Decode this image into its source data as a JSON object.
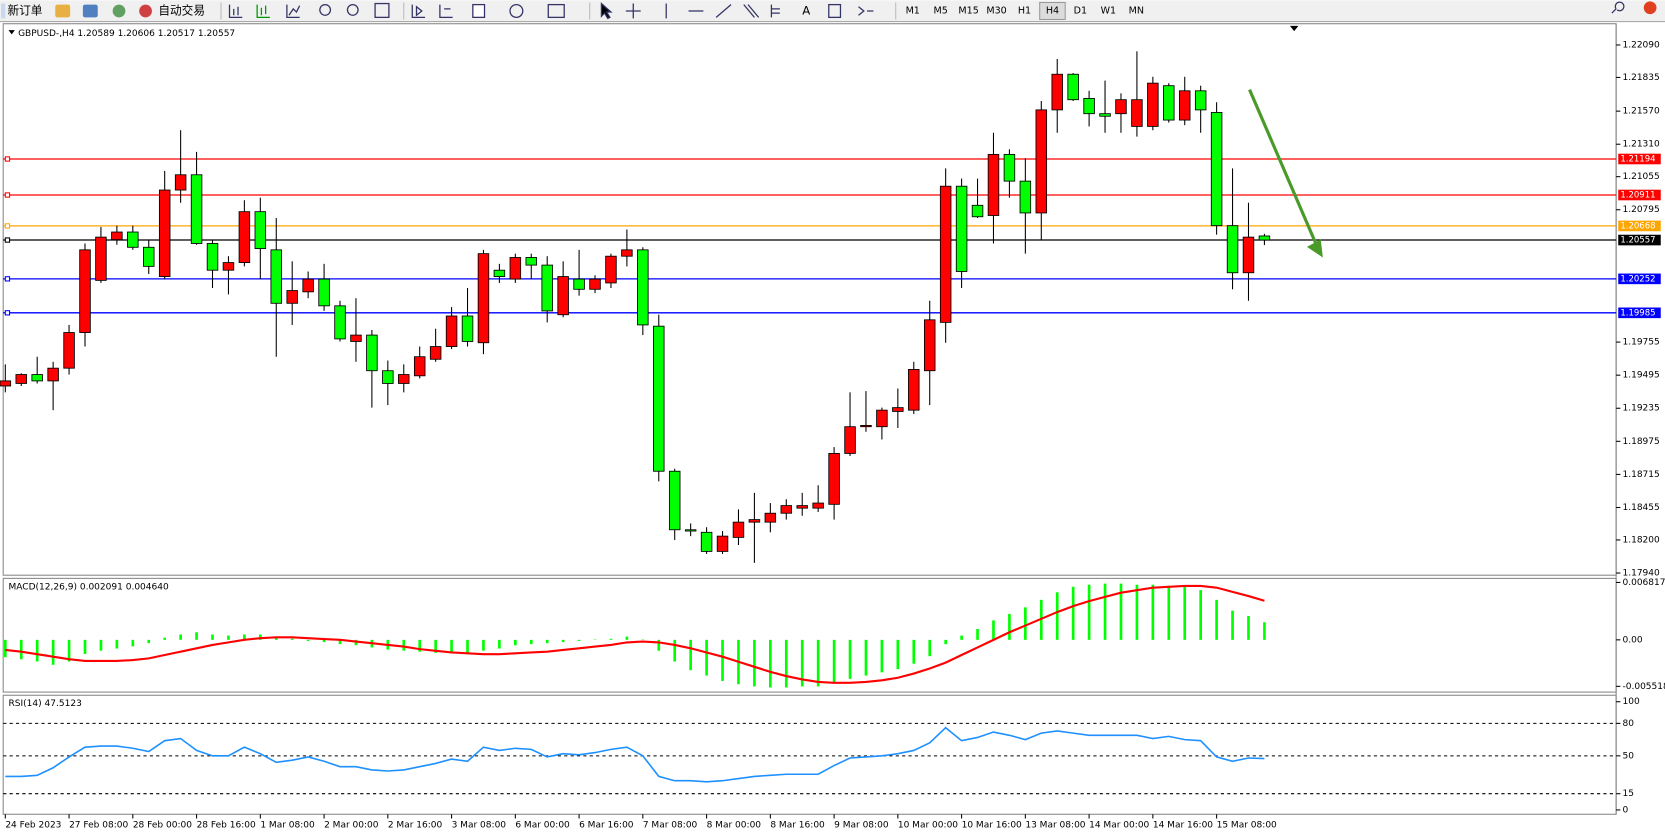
{
  "toolbar": {
    "new_order": "新订单",
    "auto_trading": "自动交易",
    "timeframes": [
      "M1",
      "M5",
      "M15",
      "M30",
      "H1",
      "H4",
      "D1",
      "W1",
      "MN"
    ],
    "active_timeframe": 5
  },
  "chart_data": [
    {
      "type": "candlestick",
      "title": "GBPUSD-,H4  1.20589 1.20606 1.20517 1.20557",
      "categories": [
        "24 Feb 2023",
        null,
        null,
        null,
        "27 Feb 08:00",
        null,
        null,
        null,
        "28 Feb 00:00",
        null,
        null,
        null,
        "28 Feb 16:00",
        null,
        null,
        null,
        "1 Mar 08:00",
        null,
        null,
        null,
        "2 Mar 00:00",
        null,
        null,
        null,
        "2 Mar 16:00",
        null,
        null,
        null,
        "3 Mar 08:00",
        null,
        null,
        null,
        "6 Mar 00:00",
        null,
        null,
        null,
        "6 Mar 16:00",
        null,
        null,
        null,
        "7 Mar 08:00",
        null,
        null,
        null,
        "8 Mar 00:00",
        null,
        null,
        null,
        "8 Mar 16:00",
        null,
        null,
        null,
        "9 Mar 08:00",
        null,
        null,
        null,
        "10 Mar 00:00",
        null,
        null,
        null,
        "10 Mar 16:00",
        null,
        null,
        null,
        "13 Mar 08:00",
        null,
        null,
        null,
        "14 Mar 00:00",
        null,
        null,
        null,
        "14 Mar 16:00",
        null,
        null,
        null,
        "15 Mar 08:00",
        null,
        null,
        null
      ],
      "open": [
        1.1941,
        1.1943,
        1.195,
        1.1945,
        1.1955,
        1.1983,
        1.2024,
        1.2056,
        1.2062,
        1.205,
        1.2027,
        1.2095,
        1.2107,
        1.2053,
        1.2032,
        1.2038,
        1.2078,
        1.2048,
        1.2006,
        1.2015,
        1.2025,
        1.2004,
        1.1976,
        1.1981,
        1.1953,
        1.1943,
        1.1949,
        1.1962,
        1.1972,
        1.1996,
        1.1975,
        1.2032,
        1.2025,
        1.2042,
        1.2036,
        1.1997,
        1.2025,
        1.2017,
        1.2022,
        1.2043,
        1.2048,
        1.1988,
        1.1874,
        1.1828,
        1.1826,
        1.1811,
        1.1822,
        1.1834,
        1.1834,
        1.1841,
        1.1845,
        1.1845,
        1.1848,
        1.1888,
        1.1909,
        1.1909,
        1.1921,
        1.1922,
        1.1953,
        1.1991,
        1.2098,
        1.2083,
        1.2075,
        1.2123,
        1.2102,
        1.2077,
        1.2158,
        1.2186,
        1.2167,
        1.2155,
        1.2155,
        1.2145,
        1.2145,
        1.2177,
        1.215,
        1.2173,
        1.2156,
        1.2067,
        1.203,
        1.20589
      ],
      "high": [
        1.1958,
        1.1951,
        1.1964,
        1.196,
        1.1989,
        1.2053,
        1.2066,
        1.2067,
        1.2067,
        1.2056,
        1.211,
        1.2142,
        1.2125,
        1.2056,
        1.2043,
        1.2087,
        1.2089,
        1.2073,
        1.2039,
        1.2031,
        1.2037,
        1.2008,
        1.201,
        1.1985,
        1.1961,
        1.1958,
        1.1972,
        1.1986,
        1.2003,
        1.2018,
        1.2048,
        1.2037,
        1.2045,
        1.2045,
        1.2043,
        1.2039,
        1.2048,
        1.2028,
        1.2045,
        1.2064,
        1.205,
        1.1997,
        1.1876,
        1.1833,
        1.183,
        1.1827,
        1.1844,
        1.1857,
        1.1849,
        1.1852,
        1.1857,
        1.1863,
        1.1893,
        1.1936,
        1.1937,
        1.1924,
        1.1939,
        1.196,
        1.2008,
        1.2112,
        1.2104,
        1.2104,
        1.214,
        1.2127,
        1.212,
        1.2165,
        1.2198,
        1.2187,
        1.2173,
        1.2181,
        1.2171,
        1.2204,
        1.2184,
        1.2179,
        1.2184,
        1.2177,
        1.2164,
        1.2112,
        1.2085,
        1.20606
      ],
      "low": [
        1.1936,
        1.1941,
        1.1943,
        1.1922,
        1.195,
        1.1972,
        1.2022,
        1.2052,
        1.2048,
        1.2029,
        1.2025,
        1.2085,
        1.2052,
        1.2018,
        1.2013,
        1.2035,
        1.2025,
        1.1964,
        1.1989,
        1.201,
        1.2,
        1.1976,
        1.196,
        1.1924,
        1.1926,
        1.1936,
        1.1947,
        1.196,
        1.197,
        1.1972,
        1.1966,
        1.2022,
        1.2022,
        1.2025,
        1.1991,
        1.1995,
        1.2012,
        1.2014,
        1.2018,
        1.2035,
        1.1981,
        1.1866,
        1.182,
        1.1823,
        1.1809,
        1.1809,
        1.1816,
        1.1802,
        1.1826,
        1.1836,
        1.1839,
        1.1842,
        1.1836,
        1.1886,
        1.1905,
        1.1899,
        1.1908,
        1.1919,
        1.1926,
        1.1975,
        1.2018,
        1.2073,
        1.2053,
        1.2089,
        1.2045,
        1.2056,
        1.214,
        1.2165,
        1.2145,
        1.214,
        1.214,
        1.2137,
        1.2142,
        1.2148,
        1.2146,
        1.214,
        1.206,
        1.2017,
        1.2008,
        1.20517
      ],
      "close": [
        1.1945,
        1.195,
        1.1945,
        1.1955,
        1.1983,
        1.2048,
        1.2058,
        1.2062,
        1.205,
        1.2035,
        1.2095,
        1.2107,
        1.2053,
        1.2032,
        1.2038,
        1.2078,
        1.2049,
        1.2006,
        1.2016,
        1.2025,
        1.2004,
        1.1978,
        1.1981,
        1.1953,
        1.1943,
        1.195,
        1.1964,
        1.1972,
        1.1996,
        1.1976,
        1.2045,
        1.2027,
        1.2042,
        1.2036,
        1.2,
        1.2027,
        1.2017,
        1.2025,
        1.2043,
        1.2048,
        1.1989,
        1.1874,
        1.1828,
        1.1827,
        1.1811,
        1.1823,
        1.1834,
        1.1836,
        1.1841,
        1.1847,
        1.1847,
        1.1849,
        1.1888,
        1.1909,
        1.191,
        1.1922,
        1.1924,
        1.1954,
        1.1993,
        1.2098,
        1.2031,
        1.2074,
        1.2123,
        1.2102,
        1.2077,
        1.2158,
        1.2186,
        1.2166,
        1.2155,
        1.2153,
        1.2166,
        1.2166,
        1.2179,
        1.215,
        1.2173,
        1.2158,
        1.2067,
        1.203,
        1.2058,
        1.20557
      ],
      "up_color": "#ff0000",
      "down_color": "#00ff00",
      "ylim": [
        1.17923,
        1.22257
      ],
      "yticks": [
        {
          "value": 1.2209,
          "label": "1.22090"
        },
        {
          "value": 1.21835,
          "label": "1.21835"
        },
        {
          "value": 1.2157,
          "label": "1.21570"
        },
        {
          "value": 1.2131,
          "label": "1.21310"
        },
        {
          "value": 1.21055,
          "label": "1.21055"
        },
        {
          "value": 1.20795,
          "label": "1.20795"
        },
        {
          "value": 1.19755,
          "label": "1.19755"
        },
        {
          "value": 1.19495,
          "label": "1.19495"
        },
        {
          "value": 1.19235,
          "label": "1.19235"
        },
        {
          "value": 1.18975,
          "label": "1.18975"
        },
        {
          "value": 1.18715,
          "label": "1.18715"
        },
        {
          "value": 1.18455,
          "label": "1.18455"
        },
        {
          "value": 1.182,
          "label": "1.18200"
        },
        {
          "value": 1.1794,
          "label": "1.17940"
        }
      ],
      "levels": [
        {
          "value": 1.21194,
          "color": "#ff0000"
        },
        {
          "value": 1.20911,
          "color": "#ff0000"
        },
        {
          "value": 1.20668,
          "color": "#ffa500"
        },
        {
          "value": 1.20557,
          "color": "#000000"
        },
        {
          "value": 1.20252,
          "color": "#0000ff"
        },
        {
          "value": 1.19985,
          "color": "#0000ff"
        }
      ]
    },
    {
      "type": "macd",
      "title": "MACD(12,26,9) 0.002091 0.004640",
      "histogram": {
        "color": "#00ff00",
        "values": [
          -0.00206,
          -0.00231,
          -0.00257,
          -0.00296,
          -0.00257,
          -0.00167,
          -0.00129,
          -0.00103,
          -0.00077,
          -0.00039,
          0.00026,
          0.00064,
          0.0009,
          0.00064,
          0.00051,
          0.00064,
          0.00064,
          0.00026,
          0.00013,
          -0.00013,
          -0.00026,
          -0.00051,
          -0.00064,
          -0.0009,
          -0.00116,
          -0.00129,
          -0.00141,
          -0.00154,
          -0.00154,
          -0.00154,
          -0.00129,
          -0.00103,
          -0.00064,
          -0.00051,
          -0.00039,
          -0.00026,
          -0.00013,
          5e-05,
          0.00013,
          0.00039,
          5e-05,
          -0.00129,
          -0.00257,
          -0.0036,
          -0.00424,
          -0.00488,
          -0.00527,
          -0.00553,
          -0.00565,
          -0.00565,
          -0.00553,
          -0.00553,
          -0.00514,
          -0.00463,
          -0.00424,
          -0.00386,
          -0.00347,
          -0.00283,
          -0.00193,
          -0.00051,
          0.00051,
          0.00129,
          0.00231,
          0.00308,
          0.00386,
          0.00475,
          0.00565,
          0.0063,
          0.00655,
          0.00668,
          0.00668,
          0.00655,
          0.00655,
          0.00643,
          0.0063,
          0.00591,
          0.00475,
          0.00347,
          0.00283,
          0.002091
        ]
      },
      "signal": {
        "color": "#ff0000",
        "values": [
          -0.0012,
          -0.0014,
          -0.0017,
          -0.002,
          -0.0023,
          -0.0025,
          -0.0025,
          -0.0025,
          -0.0024,
          -0.0022,
          -0.0018,
          -0.0014,
          -0.001,
          -0.0006,
          -0.0003,
          0,
          0.0002,
          0.0003,
          0.0003,
          0.0002,
          0.0001,
          0,
          -0.0002,
          -0.0004,
          -0.0006,
          -0.0008,
          -0.0011,
          -0.0013,
          -0.0015,
          -0.0016,
          -0.0017,
          -0.0017,
          -0.0016,
          -0.0015,
          -0.0014,
          -0.0012,
          -0.001,
          -0.0008,
          -0.0006,
          -0.0003,
          -0.0002,
          -0.0003,
          -0.0006,
          -0.001,
          -0.0015,
          -0.002,
          -0.0026,
          -0.0032,
          -0.0038,
          -0.0043,
          -0.0047,
          -0.005,
          -0.0051,
          -0.0051,
          -0.005,
          -0.0048,
          -0.0045,
          -0.004,
          -0.0034,
          -0.0027,
          -0.0018,
          -0.0009,
          0,
          0.0009,
          0.0017,
          0.0025,
          0.0033,
          0.004,
          0.0046,
          0.0051,
          0.0056,
          0.0059,
          0.0062,
          0.0063,
          0.0064,
          0.0064,
          0.0062,
          0.0057,
          0.0052,
          0.00464
        ]
      },
      "ylim": [
        -0.0062,
        0.0073
      ],
      "yticks": [
        0.006817,
        {
          "value": 0,
          "label": "0.00"
        },
        -0.005518
      ]
    },
    {
      "type": "rsi",
      "title": "RSI(14) 47.5123",
      "color": "#1e90ff",
      "values": [
        31,
        31,
        32,
        39,
        49,
        58,
        59,
        59,
        57,
        54,
        64,
        66,
        55,
        50,
        50,
        58,
        52,
        44,
        46,
        49,
        45,
        40,
        40,
        37,
        36,
        37,
        40,
        43,
        47,
        45,
        58,
        55,
        57,
        56,
        49,
        52,
        51,
        53,
        56,
        58,
        50,
        31,
        27,
        27,
        26,
        27,
        29,
        31,
        32,
        33,
        33,
        33,
        41,
        48,
        49,
        50,
        52,
        55,
        62,
        76,
        64,
        67,
        72,
        69,
        65,
        71,
        73,
        71,
        69,
        69,
        69,
        69,
        66,
        68,
        65,
        64,
        49,
        45,
        48,
        47.5123
      ],
      "ylim": [
        -4,
        106
      ],
      "yticks": [
        100,
        80,
        50,
        15,
        0
      ],
      "levels": [
        80,
        50,
        15
      ]
    }
  ]
}
